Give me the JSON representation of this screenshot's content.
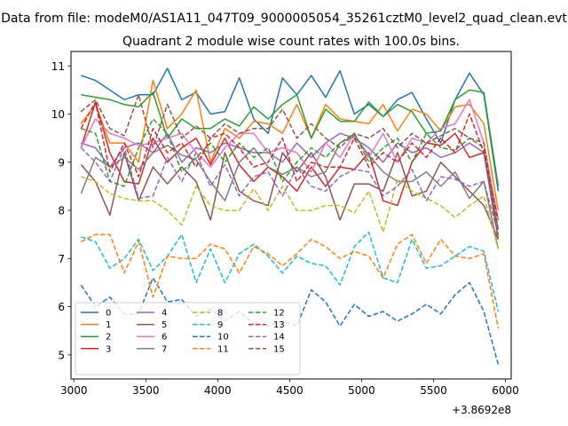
{
  "figure": {
    "suptitle": "Data from file: modeM0/AS1A11_047T09_9000005054_35261cztM0_level2_quad_clean.evt",
    "title": "Quadrant 2 module wise count rates with 100.0s bins.",
    "offset_label": "+3.8692e8"
  },
  "chart_data": {
    "type": "line",
    "title": "Quadrant 2 module wise count rates with 100.0s bins.",
    "xlabel": "",
    "ylabel": "",
    "x_offset": 386920000,
    "xlim": [
      2980,
      6040
    ],
    "ylim": [
      4.5,
      11.3
    ],
    "xticks": [
      3000,
      3500,
      4000,
      4500,
      5000,
      5500,
      6000
    ],
    "yticks": [
      5,
      6,
      7,
      8,
      9,
      10,
      11
    ],
    "legend_position": "lower-left",
    "legend_columns": 4,
    "x": [
      3050,
      3150,
      3250,
      3350,
      3450,
      3550,
      3650,
      3750,
      3850,
      3950,
      4050,
      4150,
      4250,
      4350,
      4450,
      4550,
      4650,
      4750,
      4850,
      4950,
      5050,
      5150,
      5250,
      5350,
      5450,
      5550,
      5650,
      5750,
      5850,
      5950
    ],
    "series": [
      {
        "name": "0",
        "color": "#1f77b4",
        "style": "solid",
        "values": [
          10.8,
          10.7,
          10.5,
          10.3,
          10.4,
          10.4,
          10.95,
          10.3,
          10.45,
          10.0,
          10.05,
          10.75,
          9.9,
          9.6,
          10.75,
          10.4,
          10.8,
          10.35,
          10.9,
          10.0,
          10.2,
          9.95,
          10.3,
          10.45,
          9.9,
          9.4,
          10.3,
          10.85,
          10.4,
          8.4
        ]
      },
      {
        "name": "1",
        "color": "#ff7f0e",
        "style": "solid",
        "values": [
          9.8,
          10.2,
          9.4,
          9.4,
          9.0,
          10.7,
          9.7,
          10.0,
          10.5,
          9.0,
          9.7,
          9.5,
          9.85,
          9.8,
          9.6,
          10.2,
          9.5,
          10.2,
          9.9,
          9.85,
          9.8,
          10.2,
          9.65,
          10.1,
          10.0,
          9.65,
          10.15,
          10.2,
          9.8,
          8.0
        ]
      },
      {
        "name": "2",
        "color": "#2ca02c",
        "style": "solid",
        "values": [
          10.4,
          10.35,
          10.3,
          10.2,
          10.15,
          10.45,
          9.5,
          9.9,
          9.7,
          9.7,
          9.9,
          9.75,
          10.15,
          9.9,
          10.2,
          10.4,
          9.5,
          10.1,
          9.85,
          9.85,
          10.25,
          9.95,
          10.2,
          10.05,
          9.6,
          9.65,
          10.3,
          10.5,
          10.45,
          8.5
        ]
      },
      {
        "name": "3",
        "color": "#d62728",
        "style": "solid",
        "values": [
          9.3,
          10.25,
          9.2,
          8.6,
          8.55,
          9.5,
          9.0,
          9.3,
          9.5,
          8.95,
          9.5,
          8.95,
          8.6,
          8.9,
          8.7,
          8.4,
          8.9,
          8.5,
          8.9,
          8.85,
          9.2,
          8.2,
          8.1,
          9.0,
          9.4,
          9.35,
          9.6,
          9.1,
          9.2,
          7.4
        ]
      },
      {
        "name": "4",
        "color": "#9467bd",
        "style": "solid",
        "values": [
          9.4,
          9.3,
          8.9,
          9.3,
          9.4,
          9.2,
          9.6,
          9.0,
          9.3,
          9.2,
          9.4,
          9.3,
          9.2,
          9.2,
          9.0,
          9.4,
          9.1,
          9.4,
          9.6,
          9.5,
          9.3,
          9.0,
          9.4,
          9.2,
          9.3,
          9.1,
          9.2,
          9.4,
          9.2,
          7.6
        ]
      },
      {
        "name": "5",
        "color": "#8c564b",
        "style": "solid",
        "values": [
          8.95,
          8.6,
          7.9,
          9.2,
          8.2,
          8.9,
          8.55,
          8.9,
          8.6,
          7.8,
          9.2,
          8.4,
          8.2,
          8.1,
          9.2,
          8.8,
          9.2,
          8.7,
          7.8,
          8.55,
          8.55,
          8.4,
          9.2,
          8.3,
          8.4,
          9.0,
          8.7,
          8.4,
          8.1,
          7.4
        ]
      },
      {
        "name": "6",
        "color": "#e377c2",
        "style": "solid",
        "values": [
          9.3,
          9.9,
          9.6,
          9.5,
          9.35,
          9.4,
          9.5,
          9.6,
          9.2,
          8.9,
          9.3,
          9.6,
          9.6,
          9.2,
          9.3,
          9.2,
          8.8,
          9.4,
          9.1,
          9.6,
          9.1,
          9.6,
          9.0,
          9.5,
          9.4,
          9.7,
          9.8,
          10.3,
          9.4,
          7.8
        ]
      },
      {
        "name": "7",
        "color": "#7f7f7f",
        "style": "solid",
        "values": [
          8.35,
          9.1,
          8.9,
          9.1,
          8.85,
          9.2,
          9.35,
          9.15,
          9.05,
          8.6,
          8.2,
          9.0,
          9.3,
          8.9,
          8.75,
          8.9,
          8.7,
          8.8,
          9.4,
          9.55,
          9.15,
          8.8,
          8.6,
          8.6,
          8.8,
          8.5,
          8.8,
          8.25,
          8.6,
          7.2
        ]
      },
      {
        "name": "8",
        "color": "#bcbd22",
        "style": "dashed",
        "values": [
          8.7,
          8.6,
          8.35,
          8.25,
          8.2,
          8.2,
          8.0,
          7.7,
          8.5,
          8.1,
          8.0,
          8.0,
          8.45,
          8.0,
          8.5,
          8.0,
          8.0,
          8.1,
          8.1,
          7.95,
          8.4,
          7.55,
          8.65,
          8.4,
          8.25,
          8.1,
          7.85,
          8.1,
          8.3,
          7.2
        ]
      },
      {
        "name": "9",
        "color": "#17becf",
        "style": "dashed",
        "values": [
          7.45,
          7.35,
          6.8,
          7.0,
          7.4,
          6.75,
          7.05,
          7.5,
          6.5,
          7.2,
          6.5,
          7.1,
          7.3,
          7.05,
          6.7,
          7.05,
          6.9,
          6.85,
          6.45,
          7.25,
          7.55,
          6.6,
          6.5,
          7.4,
          6.8,
          6.85,
          7.05,
          7.25,
          7.15,
          5.9
        ]
      },
      {
        "name": "10",
        "color": "#1f77b4",
        "style": "dashed",
        "values": [
          6.45,
          6.0,
          6.2,
          5.85,
          5.85,
          6.6,
          6.1,
          6.15,
          5.8,
          5.95,
          5.7,
          5.9,
          5.65,
          5.6,
          5.7,
          5.6,
          6.35,
          6.1,
          5.6,
          6.05,
          5.8,
          5.9,
          5.7,
          5.85,
          6.05,
          5.85,
          6.25,
          6.5,
          5.9,
          4.8
        ]
      },
      {
        "name": "11",
        "color": "#ff7f0e",
        "style": "dashed",
        "values": [
          7.35,
          7.5,
          7.5,
          6.7,
          7.35,
          6.2,
          7.05,
          7.0,
          7.0,
          7.3,
          7.2,
          6.7,
          7.25,
          7.1,
          6.85,
          7.1,
          7.4,
          7.25,
          7.0,
          7.15,
          7.05,
          6.6,
          7.3,
          7.5,
          6.9,
          7.4,
          7.05,
          7.0,
          7.1,
          5.55
        ]
      },
      {
        "name": "12",
        "color": "#2ca02c",
        "style": "dashed",
        "values": [
          9.7,
          9.6,
          8.6,
          8.5,
          9.3,
          9.9,
          9.6,
          8.8,
          9.1,
          9.4,
          9.0,
          9.4,
          9.1,
          9.3,
          8.6,
          9.0,
          9.3,
          9.1,
          9.4,
          9.6,
          9.0,
          9.3,
          9.5,
          9.0,
          9.6,
          9.3,
          9.25,
          9.5,
          9.3,
          7.5
        ]
      },
      {
        "name": "13",
        "color": "#d62728",
        "style": "dashed",
        "values": [
          9.7,
          10.25,
          8.8,
          9.4,
          8.7,
          9.7,
          9.2,
          9.4,
          8.9,
          9.5,
          9.6,
          9.3,
          8.9,
          9.0,
          9.5,
          8.6,
          9.0,
          8.9,
          8.9,
          9.5,
          8.9,
          9.2,
          9.0,
          9.4,
          9.1,
          9.5,
          9.2,
          10.0,
          9.2,
          7.8
        ]
      },
      {
        "name": "14",
        "color": "#9467bd",
        "style": "dashed",
        "values": [
          9.3,
          9.0,
          8.6,
          9.3,
          8.25,
          8.3,
          9.1,
          8.6,
          9.2,
          8.5,
          8.95,
          8.3,
          8.7,
          8.8,
          8.3,
          8.9,
          8.5,
          8.4,
          8.7,
          8.85,
          8.8,
          8.3,
          8.5,
          8.85,
          8.2,
          8.7,
          8.65,
          8.5,
          8.6,
          7.5
        ]
      },
      {
        "name": "15",
        "color": "#8c564b",
        "style": "dashed",
        "values": [
          10.05,
          10.3,
          9.7,
          9.55,
          10.4,
          9.3,
          10.2,
          9.5,
          9.75,
          9.5,
          9.8,
          9.6,
          9.7,
          9.7,
          10.1,
          9.5,
          9.8,
          9.5,
          9.3,
          9.6,
          9.5,
          9.7,
          9.3,
          9.6,
          9.4,
          9.55,
          9.7,
          9.5,
          9.4,
          7.6
        ]
      }
    ]
  }
}
